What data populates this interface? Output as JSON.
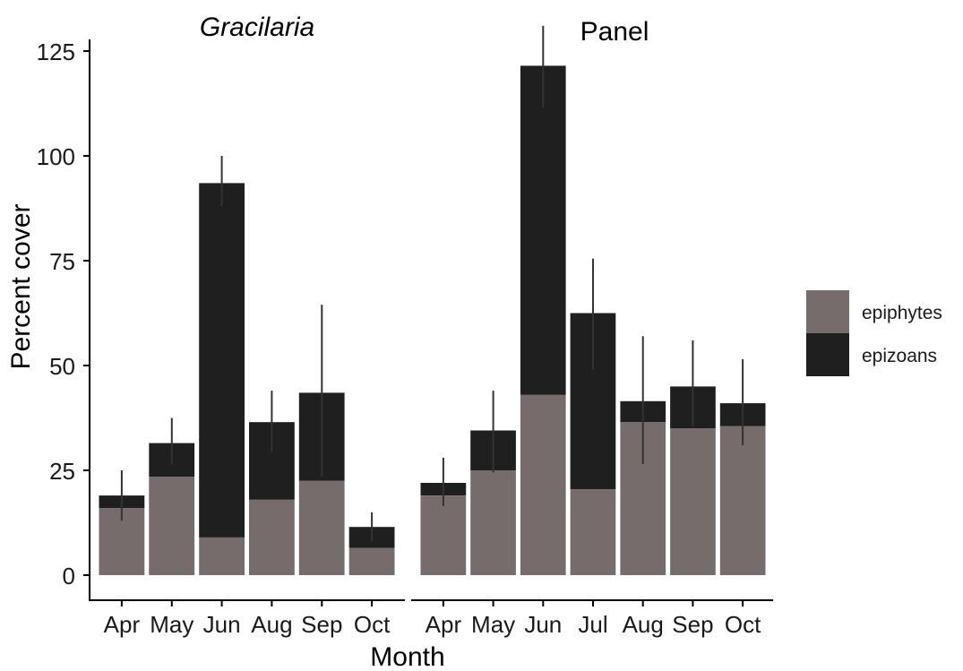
{
  "chart_data": {
    "type": "bar",
    "stacked": true,
    "error_bars": true,
    "xlabel": "Month",
    "ylabel": "Percent cover",
    "ylim": [
      0,
      125
    ],
    "yticks": [
      "0",
      "25",
      "50",
      "75",
      "100",
      "125"
    ],
    "grid": false,
    "legend_position": "right",
    "colors": {
      "epiphytes": "#766c6c",
      "epizoans": "#1f1f1f",
      "error_bar": "#333333",
      "axis": "#000000"
    },
    "series_names": [
      "epiphytes",
      "epizoans"
    ],
    "facets": [
      {
        "title": "Gracilaria",
        "title_italic": true,
        "categories": [
          "Apr",
          "May",
          "Jun",
          "Aug",
          "Sep",
          "Oct"
        ],
        "series": [
          {
            "name": "epiphytes",
            "values": [
              16,
              23.5,
              9,
              18,
              22.5,
              6.5
            ]
          },
          {
            "name": "epizoans",
            "values": [
              3,
              8,
              84.5,
              18.5,
              21,
              5
            ]
          }
        ],
        "totals": [
          19,
          31.5,
          93.5,
          36.5,
          43.5,
          11.5
        ],
        "error_low": [
          13,
          26.5,
          88,
          29.5,
          23.5,
          8
        ],
        "error_high": [
          25,
          37.5,
          100,
          44,
          64.5,
          15
        ]
      },
      {
        "title": "Panel",
        "title_italic": false,
        "categories": [
          "Apr",
          "May",
          "Jun",
          "Jul",
          "Aug",
          "Sep",
          "Oct"
        ],
        "series": [
          {
            "name": "epiphytes",
            "values": [
              19,
              25,
              43,
              20.5,
              36.5,
              35,
              35.5
            ]
          },
          {
            "name": "epizoans",
            "values": [
              3,
              9.5,
              78.5,
              42,
              5,
              10,
              5.5
            ]
          }
        ],
        "totals": [
          22,
          34.5,
          121.5,
          62.5,
          41.5,
          45,
          41
        ],
        "error_low": [
          16.5,
          24.5,
          111.5,
          49,
          26.5,
          35.5,
          31
        ],
        "error_high": [
          28,
          44,
          131,
          75.5,
          57,
          56,
          51.5
        ]
      }
    ]
  }
}
